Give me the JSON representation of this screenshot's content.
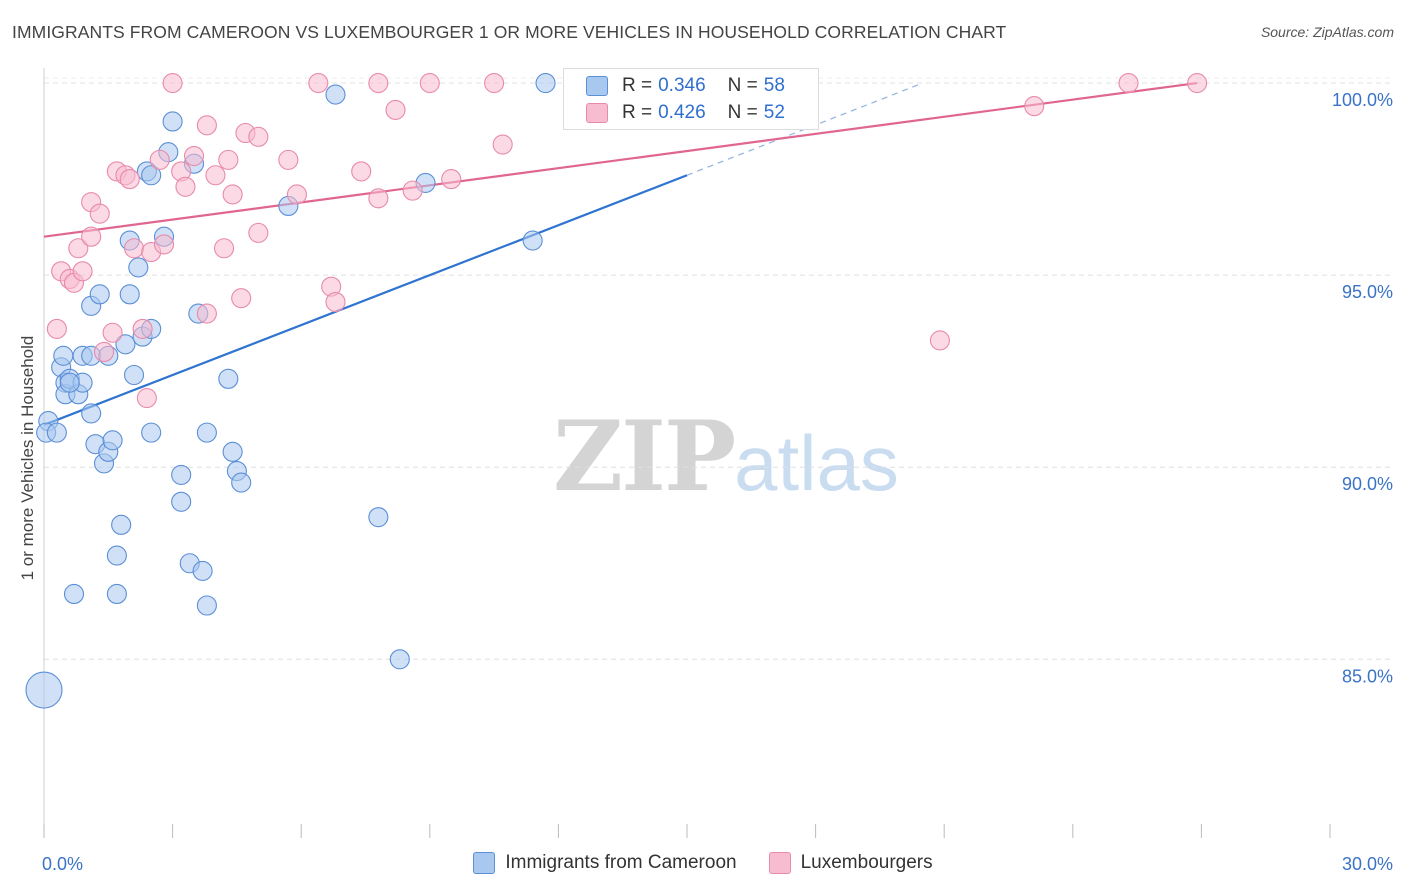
{
  "header": {
    "title": "IMMIGRANTS FROM CAMEROON VS LUXEMBOURGER 1 OR MORE VEHICLES IN HOUSEHOLD CORRELATION CHART",
    "source": "Source: ZipAtlas.com"
  },
  "watermark": {
    "zip": "ZIP",
    "atlas": "atlas"
  },
  "legend": {
    "series1": {
      "r_label": "R = ",
      "r_value": "0.346",
      "n_label": "N = ",
      "n_value": "58"
    },
    "series2": {
      "r_label": "R = ",
      "r_value": "0.426",
      "n_label": "N = ",
      "n_value": "52"
    }
  },
  "colors": {
    "blue_fill": "#a9c8f0",
    "blue_stroke": "#5b8fd6",
    "blue_line": "#2e74d0",
    "pink_fill": "#f7bcd0",
    "pink_stroke": "#e88aab",
    "pink_line": "#e0668f",
    "grid": "#e0e0e0",
    "axis_text": "#3a73c6"
  },
  "chart_data": {
    "type": "scatter",
    "title": "IMMIGRANTS FROM CAMEROON VS LUXEMBOURGER 1 OR MORE VEHICLES IN HOUSEHOLD CORRELATION CHART",
    "xlabel": "",
    "ylabel": "1 or more Vehicles in Household",
    "xlim": [
      0,
      30
    ],
    "ylim": [
      80.4,
      100.6
    ],
    "x_tick_labels": [
      {
        "value": 0,
        "label": "0.0%"
      },
      {
        "value": 30,
        "label": "30.0%"
      }
    ],
    "y_tick_labels": [
      {
        "value": 85,
        "label": "85.0%"
      },
      {
        "value": 90,
        "label": "90.0%"
      },
      {
        "value": 95,
        "label": "95.0%"
      },
      {
        "value": 100,
        "label": "100.0%"
      }
    ],
    "grid": true,
    "legend_position": "top-center",
    "series": [
      {
        "name": "Immigrants from Cameroon",
        "color": "#a9c8f0",
        "R": 0.346,
        "N": 58,
        "trend": {
          "x0": 0.0,
          "y0": 91.1,
          "x1": 15.0,
          "y1": 97.6,
          "dashed_to_x": 20.5,
          "dashed_to_y": 100.0
        },
        "points": [
          {
            "x": 0.0,
            "y": 84.2,
            "big": true
          },
          {
            "x": 0.1,
            "y": 91.2
          },
          {
            "x": 0.05,
            "y": 90.9
          },
          {
            "x": 0.3,
            "y": 90.9
          },
          {
            "x": 0.4,
            "y": 92.6
          },
          {
            "x": 0.5,
            "y": 92.2
          },
          {
            "x": 0.5,
            "y": 91.9
          },
          {
            "x": 0.6,
            "y": 92.3
          },
          {
            "x": 0.8,
            "y": 91.9
          },
          {
            "x": 0.9,
            "y": 92.2
          },
          {
            "x": 0.9,
            "y": 92.9
          },
          {
            "x": 1.1,
            "y": 92.9
          },
          {
            "x": 1.1,
            "y": 91.4
          },
          {
            "x": 1.1,
            "y": 94.2
          },
          {
            "x": 1.3,
            "y": 94.5
          },
          {
            "x": 1.2,
            "y": 90.6
          },
          {
            "x": 1.4,
            "y": 90.1
          },
          {
            "x": 1.5,
            "y": 90.4
          },
          {
            "x": 1.5,
            "y": 92.9
          },
          {
            "x": 1.6,
            "y": 90.7
          },
          {
            "x": 1.7,
            "y": 87.7
          },
          {
            "x": 1.7,
            "y": 86.7
          },
          {
            "x": 1.8,
            "y": 88.5
          },
          {
            "x": 1.9,
            "y": 93.2
          },
          {
            "x": 0.7,
            "y": 86.7
          },
          {
            "x": 2.0,
            "y": 95.9
          },
          {
            "x": 2.0,
            "y": 94.5
          },
          {
            "x": 2.1,
            "y": 92.4
          },
          {
            "x": 2.2,
            "y": 95.2
          },
          {
            "x": 2.3,
            "y": 93.4
          },
          {
            "x": 2.4,
            "y": 97.7
          },
          {
            "x": 2.5,
            "y": 97.6
          },
          {
            "x": 2.5,
            "y": 93.6
          },
          {
            "x": 2.5,
            "y": 90.9
          },
          {
            "x": 2.8,
            "y": 96.0
          },
          {
            "x": 2.9,
            "y": 98.2
          },
          {
            "x": 3.0,
            "y": 99.0
          },
          {
            "x": 3.2,
            "y": 89.1
          },
          {
            "x": 3.2,
            "y": 89.8
          },
          {
            "x": 3.4,
            "y": 87.5
          },
          {
            "x": 3.5,
            "y": 97.9
          },
          {
            "x": 3.6,
            "y": 94.0
          },
          {
            "x": 3.7,
            "y": 87.3
          },
          {
            "x": 3.8,
            "y": 86.4
          },
          {
            "x": 3.8,
            "y": 90.9
          },
          {
            "x": 4.3,
            "y": 92.3
          },
          {
            "x": 4.4,
            "y": 90.4
          },
          {
            "x": 4.5,
            "y": 89.9
          },
          {
            "x": 4.6,
            "y": 89.6
          },
          {
            "x": 5.7,
            "y": 96.8
          },
          {
            "x": 6.8,
            "y": 99.7
          },
          {
            "x": 7.8,
            "y": 88.7
          },
          {
            "x": 8.3,
            "y": 85.0
          },
          {
            "x": 8.9,
            "y": 97.4
          },
          {
            "x": 11.4,
            "y": 95.9
          },
          {
            "x": 11.7,
            "y": 100.0
          },
          {
            "x": 0.6,
            "y": 92.2
          },
          {
            "x": 0.45,
            "y": 92.9
          }
        ]
      },
      {
        "name": "Luxembourgers",
        "color": "#f7bcd0",
        "R": 0.426,
        "N": 52,
        "trend": {
          "x0": 0.0,
          "y0": 96.0,
          "x1": 26.9,
          "y1": 100.0
        },
        "points": [
          {
            "x": 0.3,
            "y": 93.6
          },
          {
            "x": 0.4,
            "y": 95.1
          },
          {
            "x": 0.6,
            "y": 94.9
          },
          {
            "x": 0.7,
            "y": 94.8
          },
          {
            "x": 0.8,
            "y": 95.7
          },
          {
            "x": 0.9,
            "y": 95.1
          },
          {
            "x": 1.1,
            "y": 96.0
          },
          {
            "x": 1.1,
            "y": 96.9
          },
          {
            "x": 1.3,
            "y": 96.6
          },
          {
            "x": 1.4,
            "y": 93.0
          },
          {
            "x": 1.6,
            "y": 93.5
          },
          {
            "x": 1.7,
            "y": 97.7
          },
          {
            "x": 1.9,
            "y": 97.6
          },
          {
            "x": 2.0,
            "y": 97.5
          },
          {
            "x": 2.1,
            "y": 95.7
          },
          {
            "x": 2.3,
            "y": 93.6
          },
          {
            "x": 2.4,
            "y": 91.8
          },
          {
            "x": 2.5,
            "y": 95.6
          },
          {
            "x": 2.7,
            "y": 98.0
          },
          {
            "x": 2.8,
            "y": 95.8
          },
          {
            "x": 3.2,
            "y": 97.7
          },
          {
            "x": 3.3,
            "y": 97.3
          },
          {
            "x": 3.5,
            "y": 98.1
          },
          {
            "x": 3.8,
            "y": 98.9
          },
          {
            "x": 3.8,
            "y": 94.0
          },
          {
            "x": 4.0,
            "y": 97.6
          },
          {
            "x": 4.2,
            "y": 95.7
          },
          {
            "x": 4.3,
            "y": 98.0
          },
          {
            "x": 4.4,
            "y": 97.1
          },
          {
            "x": 4.6,
            "y": 94.4
          },
          {
            "x": 4.7,
            "y": 98.7
          },
          {
            "x": 5.0,
            "y": 98.6
          },
          {
            "x": 5.0,
            "y": 96.1
          },
          {
            "x": 5.7,
            "y": 98.0
          },
          {
            "x": 5.9,
            "y": 97.1
          },
          {
            "x": 6.7,
            "y": 94.7
          },
          {
            "x": 6.8,
            "y": 94.3
          },
          {
            "x": 7.4,
            "y": 97.7
          },
          {
            "x": 7.8,
            "y": 97.0
          },
          {
            "x": 8.2,
            "y": 99.3
          },
          {
            "x": 8.6,
            "y": 97.2
          },
          {
            "x": 9.5,
            "y": 97.5
          },
          {
            "x": 10.7,
            "y": 98.4
          },
          {
            "x": 3.0,
            "y": 100.0
          },
          {
            "x": 6.4,
            "y": 100.0
          },
          {
            "x": 7.8,
            "y": 100.0
          },
          {
            "x": 9.0,
            "y": 100.0
          },
          {
            "x": 10.5,
            "y": 100.0
          },
          {
            "x": 20.9,
            "y": 93.3
          },
          {
            "x": 23.1,
            "y": 99.4
          },
          {
            "x": 25.3,
            "y": 100.0
          },
          {
            "x": 26.9,
            "y": 100.0
          }
        ]
      }
    ]
  }
}
